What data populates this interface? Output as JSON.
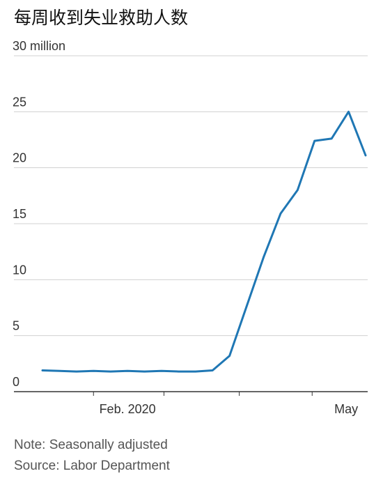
{
  "title": "每周收到失业救助人数",
  "chart_data": {
    "type": "line",
    "title": "每周收到失业救助人数",
    "xlabel": "",
    "ylabel": "",
    "y_unit_label": "30 million",
    "ylim": [
      0,
      30
    ],
    "y_ticks": [
      0,
      5,
      10,
      15,
      20,
      25,
      30
    ],
    "y_tick_labels": [
      "0",
      "5",
      "10",
      "15",
      "20",
      "25",
      "30 million"
    ],
    "x_tick_labels": [
      "Feb. 2020",
      "May"
    ],
    "grid": true,
    "color": "#1f77b4",
    "series": [
      {
        "x": [
          "2020-01-11",
          "2020-01-18",
          "2020-01-25",
          "2020-02-01",
          "2020-02-08",
          "2020-02-15",
          "2020-02-22",
          "2020-02-29",
          "2020-03-07",
          "2020-03-14",
          "2020-03-21",
          "2020-03-28",
          "2020-04-04",
          "2020-04-11",
          "2020-04-18",
          "2020-04-25",
          "2020-05-02",
          "2020-05-09",
          "2020-05-16",
          "2020-05-23"
        ],
        "values": [
          1.9,
          1.85,
          1.8,
          1.85,
          1.8,
          1.85,
          1.8,
          1.85,
          1.8,
          1.8,
          1.9,
          3.2,
          7.6,
          12.0,
          15.9,
          18.0,
          22.4,
          22.6,
          25.0,
          21.1
        ]
      }
    ]
  },
  "notes": {
    "line1": "Note: Seasonally adjusted",
    "line2": "Source: Labor Department"
  }
}
